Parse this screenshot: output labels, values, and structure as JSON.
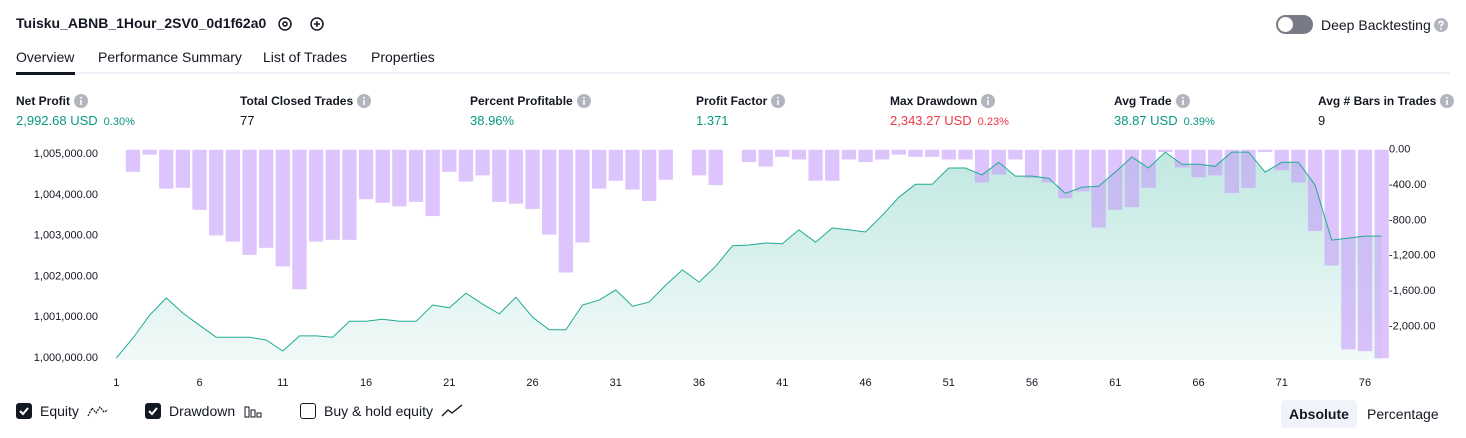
{
  "header": {
    "title": "Tuisku_ABNB_1Hour_2SV0_0d1f62a0",
    "toggle": {
      "label": "Deep Backtesting",
      "on": false
    }
  },
  "tabs": [
    {
      "label": "Overview",
      "active": true
    },
    {
      "label": "Performance Summary",
      "active": false
    },
    {
      "label": "List of Trades",
      "active": false
    },
    {
      "label": "Properties",
      "active": false
    }
  ],
  "metrics": [
    {
      "label": "Net Profit",
      "value": "2,992.68 USD",
      "sub": "0.30%",
      "color": "#089981"
    },
    {
      "label": "Total Closed Trades",
      "value": "77",
      "color": "#131722"
    },
    {
      "label": "Percent Profitable",
      "value": "38.96%",
      "color": "#089981"
    },
    {
      "label": "Profit Factor",
      "value": "1.371",
      "color": "#089981"
    },
    {
      "label": "Max Drawdown",
      "value": "2,343.27 USD",
      "sub": "0.23%",
      "color": "#f23645"
    },
    {
      "label": "Avg Trade",
      "value": "38.87 USD",
      "sub": "0.39%",
      "color": "#089981"
    },
    {
      "label": "Avg # Bars in Trades",
      "value": "9",
      "color": "#131722"
    }
  ],
  "chart_data": {
    "type": "combo",
    "x": [
      1,
      2,
      3,
      4,
      5,
      6,
      7,
      8,
      9,
      10,
      11,
      12,
      13,
      14,
      15,
      16,
      17,
      18,
      19,
      20,
      21,
      22,
      23,
      24,
      25,
      26,
      27,
      28,
      29,
      30,
      31,
      32,
      33,
      34,
      35,
      36,
      37,
      38,
      39,
      40,
      41,
      42,
      43,
      44,
      45,
      46,
      47,
      48,
      49,
      50,
      51,
      52,
      53,
      54,
      55,
      56,
      57,
      58,
      59,
      60,
      61,
      62,
      63,
      64,
      65,
      66,
      67,
      68,
      69,
      70,
      71,
      72,
      73,
      74,
      75,
      76,
      77
    ],
    "xlim": [
      0.5,
      77.5
    ],
    "xticks": [
      1,
      6,
      11,
      16,
      21,
      26,
      31,
      36,
      41,
      46,
      51,
      56,
      61,
      66,
      71,
      76
    ],
    "ylim": [
      999950,
      1005150
    ],
    "yticks": [
      {
        "value": 1000000,
        "label": "1,000,000.00"
      },
      {
        "value": 1001000,
        "label": "1,001,000.00"
      },
      {
        "value": 1002000,
        "label": "1,002,000.00"
      },
      {
        "value": 1003000,
        "label": "1,003,000.00"
      },
      {
        "value": 1004000,
        "label": "1,004,000.00"
      },
      {
        "value": 1005000,
        "label": "1,005,000.00"
      }
    ],
    "y2lim": [
      -2380,
      20
    ],
    "y2ticks": [
      {
        "value": 0,
        "label": "0.00"
      },
      {
        "value": -400,
        "label": "-400.00"
      },
      {
        "value": -800,
        "label": "-800.00"
      },
      {
        "value": -1200,
        "label": "-1,200.00"
      },
      {
        "value": -1600,
        "label": "-1,600.00"
      },
      {
        "value": -2000,
        "label": "-2,000.00"
      }
    ],
    "series": [
      {
        "name": "Equity",
        "type": "area",
        "visible": true,
        "color": "#22ab94",
        "values": [
          1000000,
          1000490,
          1001050,
          1001470,
          1001100,
          1000800,
          1000510,
          1000510,
          1000510,
          1000440,
          1000170,
          1000540,
          1000540,
          1000510,
          1000900,
          1000900,
          1000950,
          1000900,
          1000900,
          1001300,
          1001230,
          1001590,
          1001320,
          1001080,
          1001490,
          1001000,
          1000690,
          1000690,
          1001300,
          1001420,
          1001670,
          1001270,
          1001370,
          1001790,
          1002160,
          1001860,
          1002250,
          1002750,
          1002770,
          1002820,
          1002800,
          1003140,
          1002840,
          1003190,
          1003140,
          1003090,
          1003500,
          1003940,
          1004260,
          1004260,
          1004660,
          1004660,
          1004490,
          1004800,
          1004460,
          1004460,
          1004410,
          1004040,
          1004190,
          1004210,
          1004560,
          1004930,
          1004660,
          1005050,
          1004750,
          1004750,
          1004700,
          1005050,
          1005050,
          1004560,
          1004800,
          1004800,
          1004240,
          1002890,
          1002940,
          1002990,
          1002990
        ]
      },
      {
        "name": "Drawdown",
        "type": "bar",
        "axis": "y2",
        "visible": true,
        "color": "#c69cfa",
        "values": [
          0,
          -250,
          -55,
          -440,
          -430,
          -680,
          -970,
          -1040,
          -1190,
          -1110,
          -1320,
          -1580,
          -1040,
          -1020,
          -1020,
          -560,
          -600,
          -640,
          -590,
          -750,
          -250,
          -360,
          -290,
          -590,
          -610,
          -670,
          -960,
          -1390,
          -1050,
          -440,
          -350,
          -450,
          -580,
          -340,
          0,
          -290,
          -400,
          0,
          -140,
          -190,
          -80,
          -110,
          -350,
          -350,
          -110,
          -140,
          -110,
          -55,
          -80,
          -80,
          -110,
          -110,
          -370,
          -280,
          -110,
          -320,
          -370,
          -550,
          -470,
          -880,
          -680,
          -650,
          -430,
          -25,
          -200,
          -310,
          -290,
          -490,
          -430,
          -25,
          -230,
          -370,
          -920,
          -1310,
          -2260,
          -2280,
          -2360
        ]
      }
    ],
    "extra_toggle": {
      "label": "Buy & hold equity",
      "checked": false
    }
  },
  "view": {
    "options": [
      {
        "label": "Absolute",
        "active": true
      },
      {
        "label": "Percentage",
        "active": false
      }
    ]
  }
}
